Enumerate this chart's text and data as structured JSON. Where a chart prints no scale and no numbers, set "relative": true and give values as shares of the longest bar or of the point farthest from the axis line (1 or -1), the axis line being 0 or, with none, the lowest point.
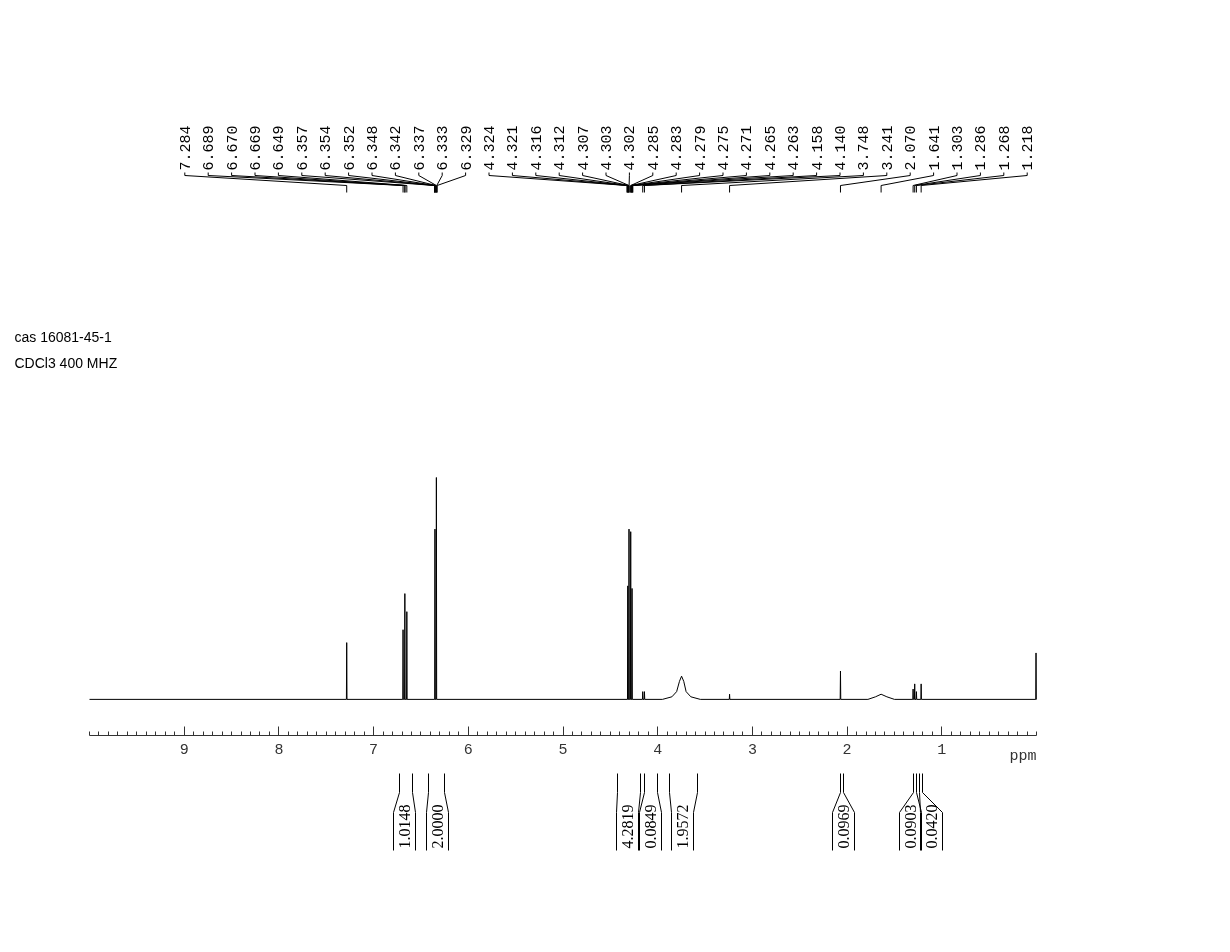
{
  "chart_data": {
    "type": "line",
    "relative": true,
    "color": "#000000",
    "xlabel": "ppm",
    "xlim": [
      10,
      0
    ],
    "xticks": [
      9,
      8,
      7,
      6,
      5,
      4,
      3,
      2,
      1
    ],
    "x": [
      10,
      7.287,
      7.284,
      7.281,
      6.692,
      6.689,
      6.686,
      6.673,
      6.67,
      6.667,
      6.652,
      6.649,
      6.646,
      6.355,
      6.352,
      6.349,
      6.34,
      6.337,
      6.334,
      4.319,
      4.316,
      4.313,
      4.306,
      4.303,
      4.3,
      4.288,
      4.285,
      4.282,
      4.274,
      4.271,
      4.268,
      4.161,
      4.158,
      4.155,
      4.143,
      4.14,
      4.137,
      3.95,
      3.85,
      3.8,
      3.77,
      3.748,
      3.725,
      3.7,
      3.65,
      3.55,
      3.244,
      3.241,
      3.238,
      2.073,
      2.07,
      2.067,
      1.78,
      1.7,
      1.641,
      1.58,
      1.5,
      1.306,
      1.303,
      1.3,
      1.289,
      1.286,
      1.283,
      1.271,
      1.268,
      1.265,
      1.221,
      1.218,
      1.215,
      0.008,
      0.005,
      0.002,
      0
    ],
    "values": [
      0.14,
      0.14,
      0.36,
      0.14,
      0.14,
      0.41,
      0.14,
      0.14,
      0.55,
      0.14,
      0.14,
      0.48,
      0.14,
      0.14,
      0.8,
      0.14,
      0.14,
      1.0,
      0.14,
      0.14,
      0.58,
      0.14,
      0.14,
      0.8,
      0.14,
      0.14,
      0.79,
      0.14,
      0.14,
      0.57,
      0.14,
      0.14,
      0.17,
      0.14,
      0.14,
      0.17,
      0.14,
      0.14,
      0.15,
      0.17,
      0.21,
      0.23,
      0.21,
      0.17,
      0.15,
      0.14,
      0.14,
      0.16,
      0.14,
      0.14,
      0.25,
      0.14,
      0.14,
      0.15,
      0.16,
      0.15,
      0.14,
      0.14,
      0.18,
      0.14,
      0.14,
      0.2,
      0.14,
      0.14,
      0.17,
      0.14,
      0.14,
      0.2,
      0.14,
      0.14,
      0.32,
      0.14,
      0.14
    ],
    "annotations": [
      "cas   16081-45-1",
      "CDCl3   400 MHZ",
      "7.284",
      "6.689",
      "6.670",
      "6.669",
      "6.649",
      "6.357",
      "6.354",
      "6.352",
      "6.348",
      "6.342",
      "6.337",
      "6.333",
      "6.329",
      "4.324",
      "4.321",
      "4.316",
      "4.312",
      "4.307",
      "4.303",
      "4.302",
      "4.285",
      "4.283",
      "4.279",
      "4.275",
      "4.271",
      "4.265",
      "4.263",
      "4.158",
      "4.140",
      "3.748",
      "3.241",
      "2.070",
      "1.641",
      "1.303",
      "1.286",
      "1.268",
      "1.218",
      "1.0148",
      "2.0000",
      "4.2819",
      "0.0849",
      "1.9572",
      "0.0969",
      "0.0903",
      "0.0420"
    ]
  }
}
